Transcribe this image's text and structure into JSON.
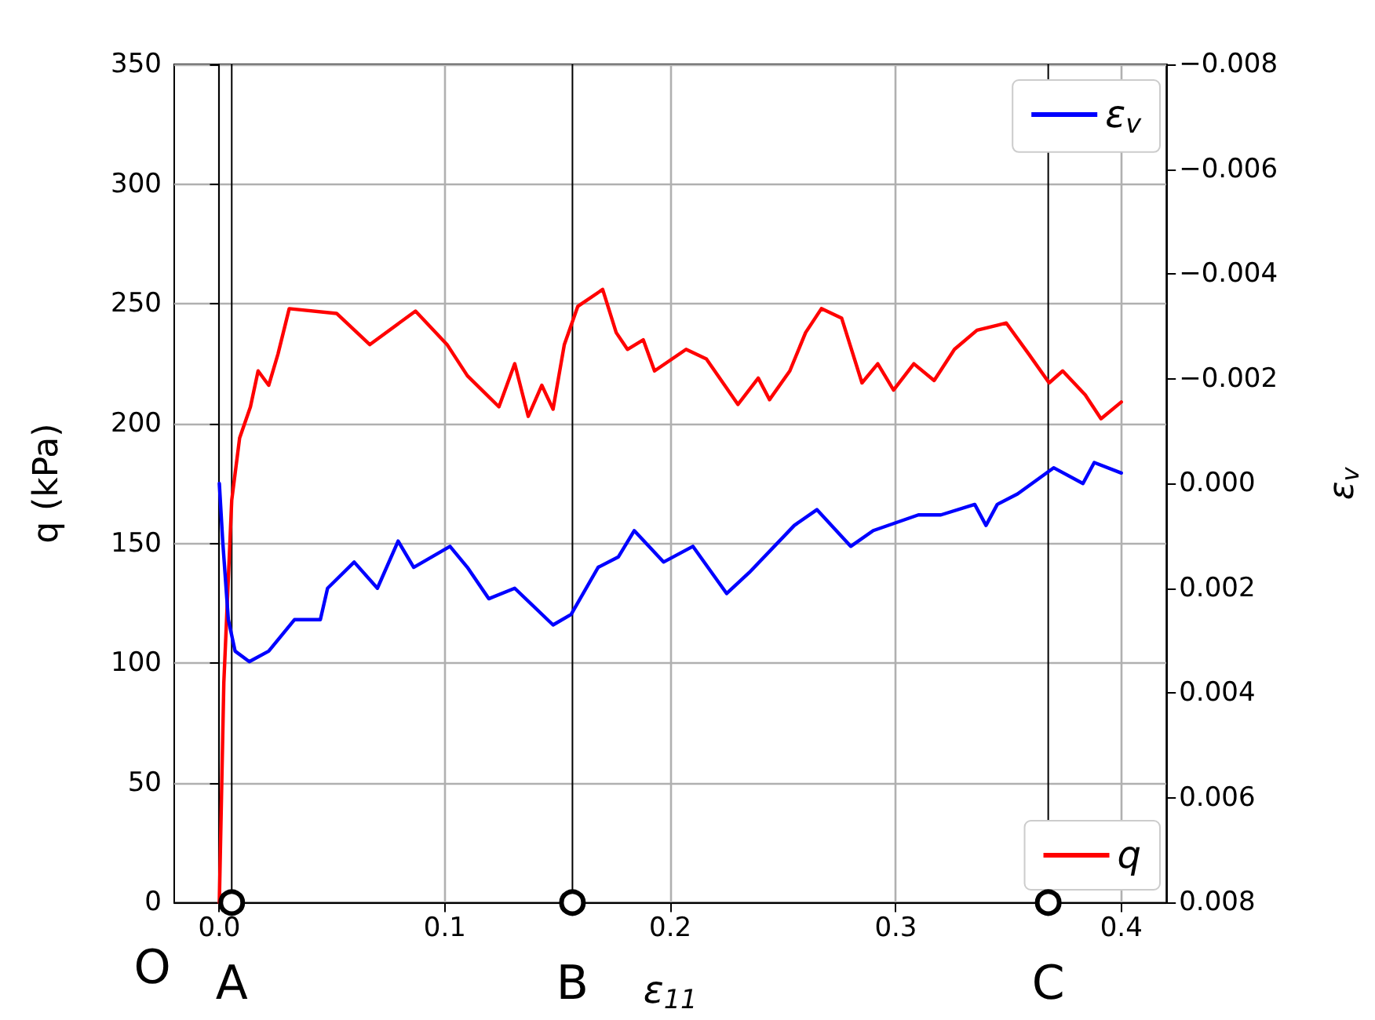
{
  "chart_data": {
    "type": "line",
    "xlabel": "ε$_{11}$",
    "ylabel": "q (kPa)",
    "y2label": "ε$_{v}$",
    "xlim": [
      -0.02,
      0.42
    ],
    "xticks": [
      {
        "value": 0,
        "label": "0.0"
      },
      {
        "value": 0.1,
        "label": "0.1"
      },
      {
        "value": 0.2,
        "label": "0.2"
      },
      {
        "value": 0.3,
        "label": "0.3"
      },
      {
        "value": 0.4,
        "label": "0.4"
      }
    ],
    "ylim": [
      0,
      350
    ],
    "yticks": [
      0,
      50,
      100,
      150,
      200,
      250,
      300,
      350
    ],
    "y2lim": [
      0.008,
      -0.008
    ],
    "y2ticks": [
      {
        "value": -0.008,
        "label": "−0.008"
      },
      {
        "value": -0.006,
        "label": "−0.006"
      },
      {
        "value": -0.004,
        "label": "−0.004"
      },
      {
        "value": -0.002,
        "label": "−0.002"
      },
      {
        "value": 0,
        "label": "0.000"
      },
      {
        "value": 0.002,
        "label": "0.002"
      },
      {
        "value": 0.004,
        "label": "0.004"
      },
      {
        "value": 0.006,
        "label": "0.006"
      },
      {
        "value": 0.008,
        "label": "0.008"
      }
    ],
    "grid": true,
    "legend": "right",
    "series": [
      {
        "name": "q",
        "color": "#ff0000",
        "x": [
          0.0,
          0.002,
          0.0055,
          0.009,
          0.0138,
          0.0172,
          0.0219,
          0.026,
          0.031,
          0.052,
          0.0667,
          0.087,
          0.101,
          0.11,
          0.124,
          0.131,
          0.137,
          0.143,
          0.148,
          0.153,
          0.159,
          0.17,
          0.176,
          0.181,
          0.188,
          0.193,
          0.207,
          0.216,
          0.23,
          0.239,
          0.244,
          0.253,
          0.26,
          0.267,
          0.276,
          0.285,
          0.292,
          0.299,
          0.308,
          0.317,
          0.326,
          0.336,
          0.349,
          0.359,
          0.368,
          0.374,
          0.384,
          0.391,
          0.4
        ],
        "values": [
          0,
          92,
          168,
          194,
          207,
          222,
          216,
          229,
          248,
          246,
          233,
          247,
          233,
          220,
          207,
          225,
          203,
          216,
          206,
          233,
          249,
          256,
          238,
          231,
          235,
          222,
          231,
          227,
          208,
          219,
          210,
          222,
          238,
          248,
          244,
          217,
          225,
          214,
          225,
          218,
          231,
          239,
          242,
          229,
          217,
          222,
          212,
          202,
          209
        ]
      },
      {
        "name": "ε$_{v}$",
        "color": "#0000ff",
        "axis": "y2",
        "x": [
          0.0,
          0.0015,
          0.004,
          0.007,
          0.0133,
          0.0219,
          0.0333,
          0.0448,
          0.048,
          0.0598,
          0.0701,
          0.0793,
          0.0862,
          0.1023,
          0.11,
          0.1195,
          0.131,
          0.148,
          0.156,
          0.168,
          0.177,
          0.184,
          0.197,
          0.21,
          0.225,
          0.235,
          0.255,
          0.265,
          0.28,
          0.29,
          0.31,
          0.32,
          0.335,
          0.34,
          0.345,
          0.354,
          0.37,
          0.383,
          0.388,
          0.4
        ],
        "values": [
          0.0,
          0.0011,
          0.0026,
          0.0032,
          0.0034,
          0.0032,
          0.0026,
          0.0026,
          0.002,
          0.0015,
          0.002,
          0.0011,
          0.0016,
          0.0012,
          0.0016,
          0.0022,
          0.002,
          0.0027,
          0.0025,
          0.0016,
          0.0014,
          0.0009,
          0.0015,
          0.0012,
          0.0021,
          0.0017,
          0.0008,
          0.0005,
          0.0012,
          0.0009,
          0.0006,
          0.0006,
          0.0004,
          0.0008,
          0.0004,
          0.0002,
          -0.0003,
          0.0,
          -0.0004,
          -0.0002
        ]
      },
      {
        "type": "scatter",
        "marker": "circle",
        "color": "#000000",
        "x": [
          0.0055,
          0.1566,
          0.3676
        ],
        "values": [
          0,
          0,
          0
        ]
      }
    ],
    "ref_lines": [
      {
        "axis": "x",
        "value": 0.0055,
        "label": "A",
        "color": "#000000"
      },
      {
        "axis": "x",
        "value": 0.1566,
        "label": "B",
        "color": "#000000"
      },
      {
        "axis": "x",
        "value": 0.3676,
        "label": "C",
        "color": "#000000"
      }
    ],
    "annotations": [
      "O"
    ]
  }
}
